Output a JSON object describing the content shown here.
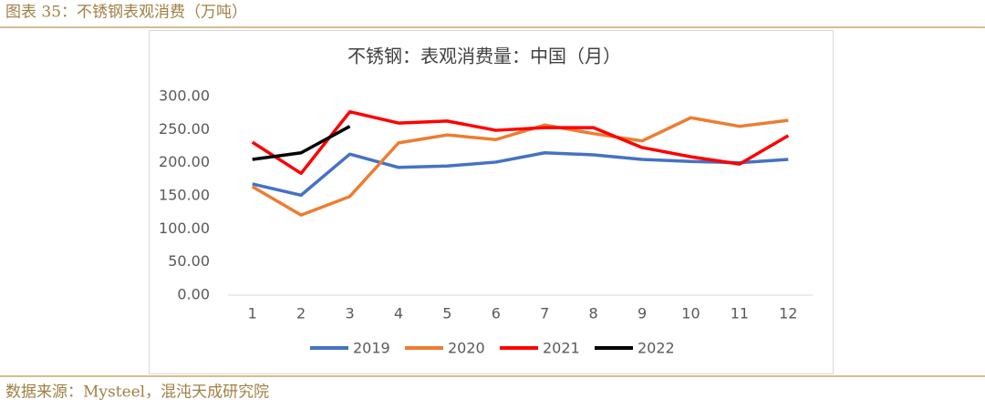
{
  "header": {
    "title": "图表 35：不锈钢表观消费（万吨）"
  },
  "footer": {
    "source": "数据来源：Mysteel，混沌天成研究院"
  },
  "chart_data": {
    "type": "line",
    "title": "不锈钢：表观消费量：中国（月）",
    "categories": [
      "1",
      "2",
      "3",
      "4",
      "5",
      "6",
      "7",
      "8",
      "9",
      "10",
      "11",
      "12"
    ],
    "series": [
      {
        "name": "2019",
        "color": "#4472c4",
        "values": [
          168,
          151,
          213,
          193,
          195,
          201,
          215,
          212,
          205,
          202,
          200,
          205
        ]
      },
      {
        "name": "2020",
        "color": "#ed7d31",
        "values": [
          164,
          121,
          149,
          230,
          242,
          235,
          257,
          244,
          233,
          268,
          255,
          264
        ]
      },
      {
        "name": "2021",
        "color": "#ff0000",
        "values": [
          231,
          184,
          277,
          260,
          263,
          249,
          253,
          253,
          223,
          209,
          198,
          241
        ]
      },
      {
        "name": "2022",
        "color": "#000000",
        "values": [
          205,
          215,
          255,
          null,
          null,
          null,
          null,
          null,
          null,
          null,
          null,
          null
        ]
      }
    ],
    "ylim": [
      0,
      300
    ],
    "yticks": [
      {
        "value": 0,
        "label": "0.00"
      },
      {
        "value": 50,
        "label": "50.00"
      },
      {
        "value": 100,
        "label": "100.00"
      },
      {
        "value": 150,
        "label": "150.00"
      },
      {
        "value": 200,
        "label": "200.00"
      },
      {
        "value": 250,
        "label": "250.00"
      },
      {
        "value": 300,
        "label": "300.00"
      }
    ],
    "grid": false,
    "legend": "bottom"
  }
}
